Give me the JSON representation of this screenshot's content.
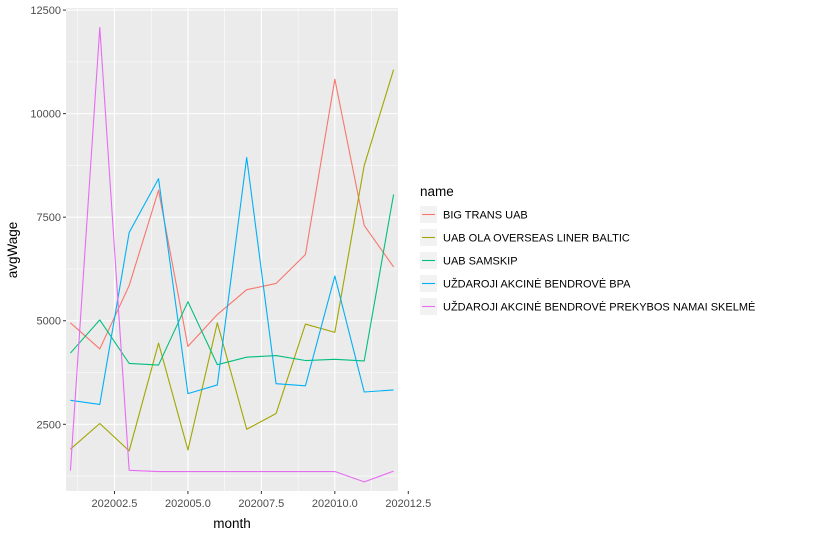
{
  "chart_data": {
    "type": "line",
    "xlabel": "month",
    "ylabel": "avgWage",
    "xlim": [
      202000.85,
      202012.15
    ],
    "ylim": [
      890,
      12550
    ],
    "x_breaks": [
      202002.5,
      202005.0,
      202007.5,
      202010.0,
      202012.5
    ],
    "x_tick_labels": [
      "202002.5",
      "202005.0",
      "202007.5",
      "202010.0",
      "202012.5"
    ],
    "y_breaks": [
      2500,
      5000,
      7500,
      10000,
      12500
    ],
    "y_tick_labels": [
      "2500",
      "5000",
      "7500",
      "10000",
      "12500"
    ],
    "grid": true,
    "legend_title": "name",
    "legend_position": "right",
    "x": [
      202001,
      202002,
      202003,
      202004,
      202005,
      202006,
      202007,
      202008,
      202009,
      202010,
      202011,
      202012
    ],
    "series": [
      {
        "name": "BIG TRANS UAB",
        "color": "#F8766D",
        "values": [
          4950,
          4320,
          5850,
          8150,
          4380,
          5150,
          5750,
          5900,
          6600,
          10830,
          7300,
          6300
        ]
      },
      {
        "name": "UAB OLA OVERSEAS LINER BALTIC",
        "color": "#A3A500",
        "values": [
          1900,
          2520,
          1860,
          4460,
          1880,
          4950,
          2380,
          2760,
          4920,
          4720,
          8750,
          11060
        ]
      },
      {
        "name": "UAB SAMSKIP",
        "color": "#00BF7D",
        "values": [
          4220,
          5020,
          3970,
          3930,
          5460,
          3940,
          4120,
          4160,
          4040,
          4070,
          4030,
          8050
        ]
      },
      {
        "name": "UŽDAROJI AKCINĖ BENDROVĖ BPA",
        "color": "#00B0F6",
        "values": [
          3080,
          2980,
          7130,
          8430,
          3240,
          3450,
          8940,
          3480,
          3430,
          6080,
          3280,
          3330
        ]
      },
      {
        "name": "UŽDAROJI AKCINĖ BENDROVĖ PREKYBOS NAMAI SKELMĖ",
        "color": "#E76BF3",
        "values": [
          1380,
          12080,
          1390,
          1360,
          1360,
          1360,
          1360,
          1360,
          1360,
          1360,
          1110,
          1370
        ]
      }
    ]
  }
}
